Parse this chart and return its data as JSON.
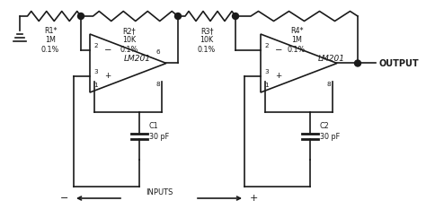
{
  "bg_color": "#ffffff",
  "line_color": "#1a1a1a",
  "text_color": "#1a1a1a",
  "lw": 1.2,
  "fig_w": 4.84,
  "fig_h": 2.43,
  "dpi": 100,
  "r_labels": [
    "R1*\n1M\n0.1%",
    "R2†\n10K\n0.1%",
    "R3†\n10K\n0.1%",
    "R4*\n1M\n0.1%"
  ],
  "c_labels": [
    "C1\n30 pF",
    "C2\n30 pF"
  ],
  "opamp_labels": [
    "LM201",
    "LM201"
  ],
  "output_text": "OUTPUT",
  "inputs_text": "INPUTS"
}
